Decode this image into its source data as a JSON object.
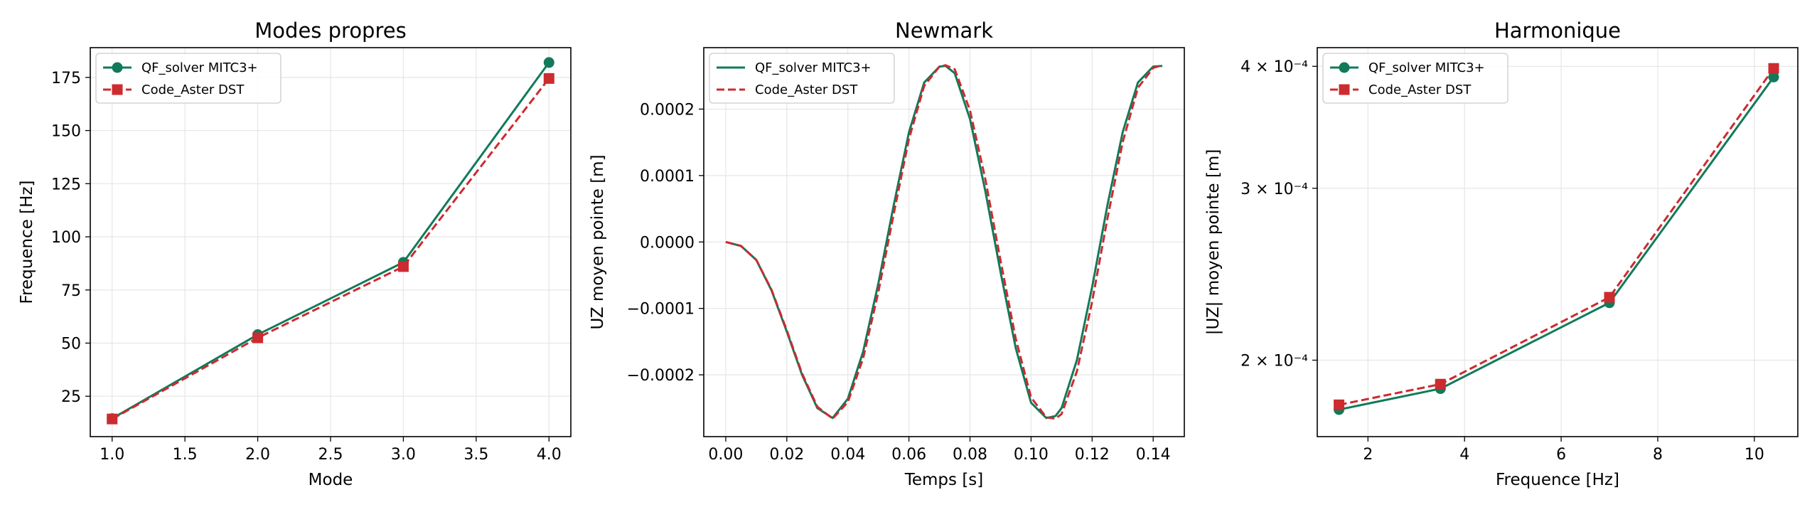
{
  "figure": {
    "background": "#ffffff"
  },
  "colors": {
    "qf": "#117a5a",
    "aster": "#cc2b2f",
    "grid": "#e6e6e6"
  },
  "chart_data": [
    {
      "type": "line",
      "title": "Modes propres",
      "xlabel": "Mode",
      "ylabel": "Frequence [Hz]",
      "xlim": [
        0.85,
        4.15
      ],
      "ylim": [
        6,
        189
      ],
      "xticks": [
        1.0,
        1.5,
        2.0,
        2.5,
        3.0,
        3.5,
        4.0
      ],
      "xtick_labels": [
        "1.0",
        "1.5",
        "2.0",
        "2.5",
        "3.0",
        "3.5",
        "4.0"
      ],
      "yticks": [
        25,
        50,
        75,
        100,
        125,
        150,
        175
      ],
      "ytick_labels": [
        "25",
        "50",
        "75",
        "100",
        "125",
        "150",
        "175"
      ],
      "grid": true,
      "legend": "upper-left",
      "series": [
        {
          "name": "QF_solver MITC3+",
          "x": [
            1,
            2,
            3,
            4
          ],
          "y": [
            14.5,
            54,
            88,
            182
          ],
          "style": "solid",
          "marker": "circle"
        },
        {
          "name": "Code_Aster DST",
          "x": [
            1,
            2,
            3,
            4
          ],
          "y": [
            14.3,
            52.5,
            86,
            174.5
          ],
          "style": "dashed",
          "marker": "square"
        }
      ]
    },
    {
      "type": "line",
      "title": "Newmark",
      "xlabel": "Temps [s]",
      "ylabel": "UZ moyen pointe [m]",
      "xlim": [
        -0.0072,
        0.1502
      ],
      "ylim": [
        -0.000293,
        0.0002925
      ],
      "xticks": [
        0.0,
        0.02,
        0.04,
        0.06,
        0.08,
        0.1,
        0.12,
        0.14
      ],
      "xtick_labels": [
        "0.00",
        "0.02",
        "0.04",
        "0.06",
        "0.08",
        "0.10",
        "0.12",
        "0.14"
      ],
      "yticks": [
        -0.0002,
        -0.0001,
        0.0,
        0.0001,
        0.0002
      ],
      "ytick_labels": [
        "−0.0002",
        "−0.0001",
        "0.0000",
        "0.0001",
        "0.0002"
      ],
      "grid": true,
      "legend": "upper-left",
      "series": [
        {
          "name": "QF_solver MITC3+",
          "style": "solid",
          "x": [
            0.0,
            0.005,
            0.01,
            0.015,
            0.02,
            0.025,
            0.03,
            0.035,
            0.04,
            0.045,
            0.05,
            0.055,
            0.06,
            0.065,
            0.07,
            0.072,
            0.075,
            0.08,
            0.085,
            0.09,
            0.095,
            0.1,
            0.105,
            0.108,
            0.11,
            0.115,
            0.12,
            0.125,
            0.13,
            0.135,
            0.14,
            0.143
          ],
          "y": [
            0,
            -6e-06,
            -2.7e-05,
            -7.3e-05,
            -0.000135,
            -0.0002,
            -0.00025,
            -0.000265,
            -0.000236,
            -0.000165,
            -6.2e-05,
            5.5e-05,
            0.000165,
            0.00024,
            0.000264,
            0.000265,
            0.000254,
            0.000185,
            7.7e-05,
            -4.5e-05,
            -0.00016,
            -0.000242,
            -0.000265,
            -0.000262,
            -0.00025,
            -0.000178,
            -6.8e-05,
            5.5e-05,
            0.000165,
            0.00024,
            0.000264,
            0.000265
          ]
        },
        {
          "name": "Code_Aster DST",
          "style": "dashed",
          "x": [
            0.0,
            0.005,
            0.01,
            0.015,
            0.02,
            0.025,
            0.03,
            0.035,
            0.04,
            0.045,
            0.05,
            0.055,
            0.06,
            0.065,
            0.07,
            0.072,
            0.075,
            0.08,
            0.085,
            0.09,
            0.095,
            0.1,
            0.105,
            0.108,
            0.11,
            0.115,
            0.12,
            0.125,
            0.13,
            0.135,
            0.14,
            0.143
          ],
          "y": [
            0,
            -6e-06,
            -2.7e-05,
            -7.2e-05,
            -0.000133,
            -0.000198,
            -0.000248,
            -0.000266,
            -0.000241,
            -0.000175,
            -7.5e-05,
            4.2e-05,
            0.000155,
            0.000235,
            0.000264,
            0.000266,
            0.00026,
            0.000198,
            9.5e-05,
            -2.8e-05,
            -0.000146,
            -0.000234,
            -0.000264,
            -0.000266,
            -0.000259,
            -0.000195,
            -9e-05,
            3.5e-05,
            0.00015,
            0.000232,
            0.000262,
            0.000266
          ]
        }
      ]
    },
    {
      "type": "line",
      "title": "Harmonique",
      "xlabel": "Frequence [Hz]",
      "ylabel": "|UZ| moyen pointe [m]",
      "xscale": "linear",
      "yscale": "log",
      "xlim": [
        0.95,
        10.9
      ],
      "ylim": [
        0.000167,
        0.000418
      ],
      "xticks": [
        2,
        4,
        6,
        8,
        10
      ],
      "xtick_labels": [
        "2",
        "4",
        "6",
        "8",
        "10"
      ],
      "yticks": [
        0.0002,
        0.0003,
        0.0004
      ],
      "ytick_labels": [
        "2 × 10⁻⁴",
        "3 × 10⁻⁴",
        "4 × 10⁻⁴"
      ],
      "grid": true,
      "legend": "upper-left",
      "series": [
        {
          "name": "QF_solver MITC3+",
          "x": [
            1.4,
            3.5,
            7.0,
            10.4
          ],
          "y": [
            0.000178,
            0.000187,
            0.000229,
            0.00039
          ],
          "style": "solid",
          "marker": "circle"
        },
        {
          "name": "Code_Aster DST",
          "x": [
            1.4,
            3.5,
            7.0,
            10.4
          ],
          "y": [
            0.00018,
            0.000189,
            0.000232,
            0.000398
          ],
          "style": "dashed",
          "marker": "square"
        }
      ]
    }
  ]
}
